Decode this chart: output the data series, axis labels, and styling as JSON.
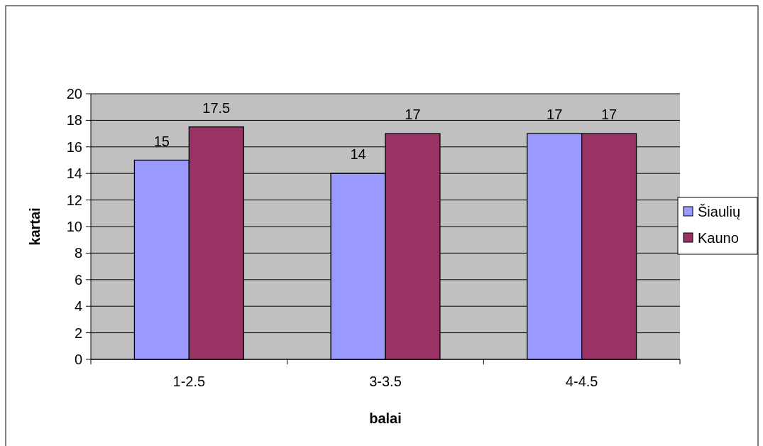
{
  "chart_data": {
    "type": "bar",
    "xlabel": "balai",
    "ylabel": "kartai",
    "categories": [
      "1-2.5",
      "3-3.5",
      "4-4.5"
    ],
    "series": [
      {
        "name": "Šiaulių",
        "color": "#9999ff",
        "values": [
          15,
          14,
          17
        ]
      },
      {
        "name": "Kauno",
        "color": "#993366",
        "values": [
          17.5,
          17,
          17
        ]
      }
    ],
    "ylim": [
      0,
      20
    ],
    "yticks": [
      0,
      2,
      4,
      6,
      8,
      10,
      12,
      14,
      16,
      18,
      20
    ],
    "grid": "y",
    "legend": "right",
    "data_labels": true
  }
}
